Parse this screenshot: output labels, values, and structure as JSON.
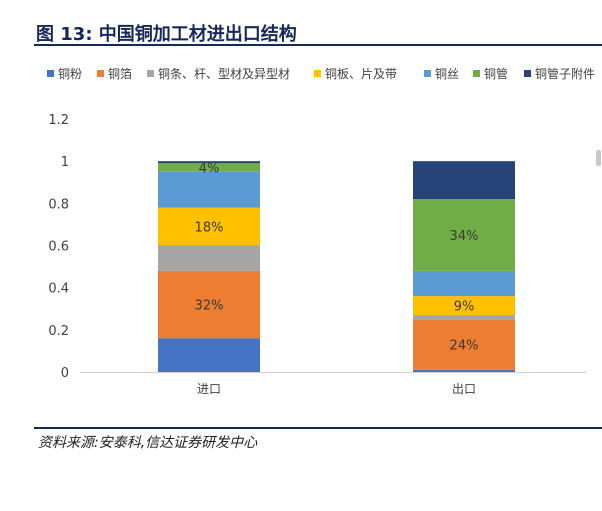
{
  "figure": {
    "title": "图 13:  中国铜加工材进出口结构",
    "source": "资料来源:安泰科,信达证券研发中心"
  },
  "chart_data": {
    "type": "bar",
    "stacked": true,
    "categories": [
      "进口",
      "出口"
    ],
    "series": [
      {
        "name": "铜粉",
        "color": "#4472c4",
        "values": [
          0.16,
          0.01
        ]
      },
      {
        "name": "铜箔",
        "color": "#ed7d31",
        "values": [
          0.32,
          0.24
        ]
      },
      {
        "name": "铜条、杆、型材及异型材",
        "color": "#a5a5a5",
        "values": [
          0.12,
          0.02
        ]
      },
      {
        "name": "铜板、片及带",
        "color": "#ffc000",
        "values": [
          0.18,
          0.09
        ]
      },
      {
        "name": "铜丝",
        "color": "#5b9bd5",
        "values": [
          0.17,
          0.12
        ]
      },
      {
        "name": "铜管",
        "color": "#70ad47",
        "values": [
          0.04,
          0.34
        ]
      },
      {
        "name": "铜管子附件",
        "color": "#264478",
        "values": [
          0.01,
          0.18
        ]
      }
    ],
    "data_labels": [
      {
        "series": "铜箔",
        "category": "进口",
        "text": "32%"
      },
      {
        "series": "铜板、片及带",
        "category": "进口",
        "text": "18%"
      },
      {
        "series": "铜管",
        "category": "进口",
        "text": "4%"
      },
      {
        "series": "铜箔",
        "category": "出口",
        "text": "24%"
      },
      {
        "series": "铜板、片及带",
        "category": "出口",
        "text": "9%"
      },
      {
        "series": "铜管",
        "category": "出口",
        "text": "34%"
      }
    ],
    "ylim": [
      0,
      1.2
    ],
    "yticks": [
      "0",
      "0.2",
      "0.4",
      "0.6",
      "0.8",
      "1",
      "1.2"
    ],
    "legend_position": "top",
    "grid": false
  }
}
